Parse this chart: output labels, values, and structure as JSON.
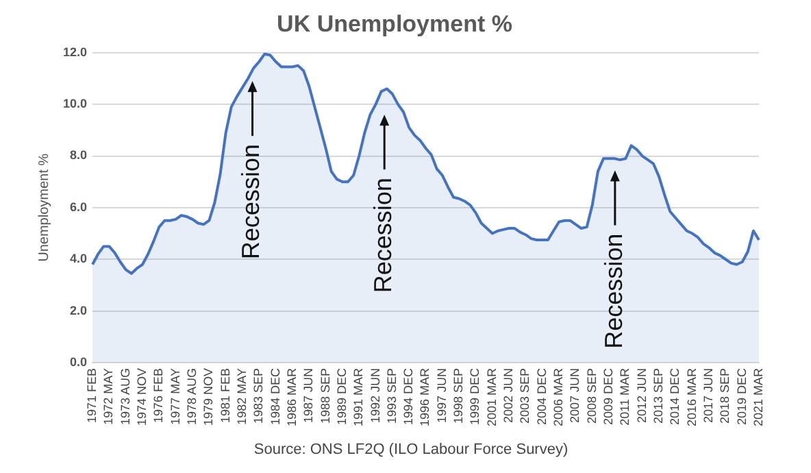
{
  "chart_data": {
    "type": "area",
    "title": "UK Unemployment %",
    "ylabel": "Unemployment %",
    "categories": [
      "1971 FEB",
      null,
      null,
      "1972 MAY",
      null,
      null,
      "1973 AUG",
      null,
      null,
      "1974 NOV",
      null,
      null,
      "1976 FEB",
      null,
      null,
      "1977 MAY",
      null,
      null,
      "1978 AUG",
      null,
      null,
      "1979 NOV",
      null,
      null,
      "1981 FEB",
      null,
      null,
      "1982 MAY",
      null,
      null,
      "1983 SEP",
      null,
      null,
      "1984 DEC",
      null,
      null,
      "1986 MAR",
      null,
      null,
      "1987 JUN",
      null,
      null,
      "1988 SEP",
      null,
      null,
      "1989 DEC",
      null,
      null,
      "1991 MAR",
      null,
      null,
      "1992 JUN",
      null,
      null,
      "1993 SEP",
      null,
      null,
      "1994 DEC",
      null,
      null,
      "1996 MAR",
      null,
      null,
      "1997 JUN",
      null,
      null,
      "1998 SEP",
      null,
      null,
      "1999 DEC",
      null,
      null,
      "2001 MAR",
      null,
      null,
      "2002 JUN",
      null,
      null,
      "2003 SEP",
      null,
      null,
      "2004 DEC",
      null,
      null,
      "2006 MAR",
      null,
      null,
      "2007 JUN",
      null,
      null,
      "2008 SEP",
      null,
      null,
      "2009 DEC",
      null,
      null,
      "2011 MAR",
      null,
      null,
      "2012 JUN",
      null,
      null,
      "2013 SEP",
      null,
      null,
      "2014 DEC",
      null,
      null,
      "2016 MAR",
      null,
      null,
      "2017 JUN",
      null,
      null,
      "2018 SEP",
      null,
      null,
      "2019 DEC",
      null,
      null,
      "2021 MAR"
    ],
    "series": [
      {
        "color": "#4472c4",
        "values": [
          3.8,
          4.2,
          4.5,
          4.5,
          4.25,
          3.9,
          3.6,
          3.45,
          3.65,
          3.8,
          4.2,
          4.7,
          5.25,
          5.5,
          5.5,
          5.55,
          5.7,
          5.65,
          5.55,
          5.4,
          5.35,
          5.5,
          6.2,
          7.3,
          8.9,
          9.9,
          10.3,
          10.65,
          11.0,
          11.4,
          11.65,
          11.95,
          11.9,
          11.65,
          11.45,
          11.45,
          11.45,
          11.5,
          11.3,
          10.7,
          9.9,
          9.1,
          8.3,
          7.4,
          7.1,
          7.0,
          7.0,
          7.25,
          8.0,
          8.9,
          9.6,
          10.0,
          10.5,
          10.6,
          10.4,
          10.0,
          9.7,
          9.1,
          8.8,
          8.6,
          8.3,
          8.05,
          7.5,
          7.25,
          6.8,
          6.4,
          6.35,
          6.25,
          6.1,
          5.8,
          5.4,
          5.2,
          5.0,
          5.1,
          5.15,
          5.2,
          5.2,
          5.05,
          4.95,
          4.8,
          4.75,
          4.75,
          4.75,
          5.1,
          5.45,
          5.5,
          5.5,
          5.35,
          5.2,
          5.25,
          6.1,
          7.4,
          7.9,
          7.9,
          7.9,
          7.85,
          7.9,
          8.4,
          8.25,
          8.0,
          7.85,
          7.7,
          7.2,
          6.5,
          5.85,
          5.6,
          5.35,
          5.1,
          5.0,
          4.85,
          4.6,
          4.45,
          4.25,
          4.15,
          4.0,
          3.85,
          3.8,
          3.9,
          4.3,
          5.1,
          4.75
        ]
      }
    ],
    "ylim": [
      0,
      12
    ],
    "yticks": [
      {
        "value": 0,
        "label": "0.0"
      },
      {
        "value": 2,
        "label": "2.0"
      },
      {
        "value": 4,
        "label": "4.0"
      },
      {
        "value": 6,
        "label": "6.0"
      },
      {
        "value": 8,
        "label": "8.0"
      },
      {
        "value": 10,
        "label": "10.0"
      },
      {
        "value": 12,
        "label": "12.0"
      }
    ],
    "grid": "y",
    "annotations": [
      {
        "text": "Recession",
        "y": 10.9
      },
      "Recession",
      "Recession",
      "Source: ONS LF2Q (ILO Labour Force Survey)"
    ]
  }
}
